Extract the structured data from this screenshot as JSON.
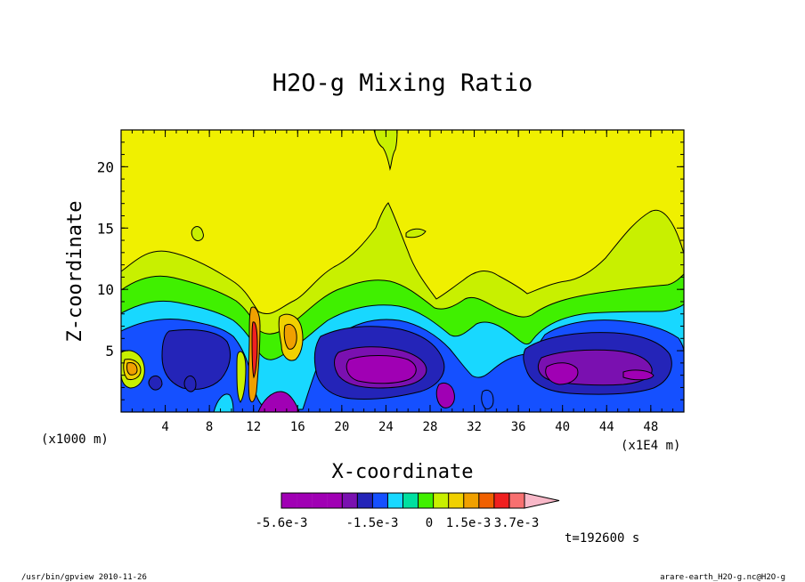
{
  "chart_data": {
    "type": "heatmap",
    "title": "H2O-g Mixing Ratio",
    "xlabel": "X-coordinate",
    "ylabel": "Z-coordinate",
    "x_unit_left": "(x1000 m)",
    "x_unit_right": "(x1E4 m)",
    "x_ticks": [
      "4",
      "8",
      "12",
      "16",
      "20",
      "24",
      "28",
      "32",
      "36",
      "40",
      "44",
      "48"
    ],
    "x_tick_values": [
      4,
      8,
      12,
      16,
      20,
      24,
      28,
      32,
      36,
      40,
      44,
      48
    ],
    "y_ticks": [
      "5",
      "10",
      "15",
      "20"
    ],
    "y_tick_values": [
      5,
      10,
      15,
      20
    ],
    "xlim": [
      0,
      51
    ],
    "ylim": [
      0,
      23
    ],
    "grid": false,
    "colorbar": {
      "tick_labels": [
        "-5.6e-3",
        "-1.5e-3",
        "0",
        "1.5e-3",
        "3.7e-3"
      ],
      "bins": [
        "#a000b4",
        "#a000b4",
        "#a000b4",
        "#a000b4",
        "#7a10b0",
        "#2424b8",
        "#1550ff",
        "#18d8ff",
        "#00e0a0",
        "#40f000",
        "#c8f000",
        "#f0d000",
        "#f0a000",
        "#f06000",
        "#f02020",
        "#f87070"
      ],
      "extend_color": "#f8b8c8"
    },
    "levels": [
      {
        "name": "L14",
        "color": "#c8f000"
      },
      {
        "name": "L13",
        "color": "#40f000"
      },
      {
        "name": "L11",
        "color": "#18d8ff"
      },
      {
        "name": "L10",
        "color": "#1550ff"
      },
      {
        "name": "L9",
        "color": "#2424b8"
      },
      {
        "name": "L8",
        "color": "#7a10b0"
      },
      {
        "name": "L7",
        "color": "#a000b4"
      }
    ],
    "background_color": "#f0f000",
    "time_label": "t=192600 s"
  },
  "footer": {
    "left": "/usr/bin/gpview  2010-11-26",
    "right": "arare-earth_H2O-g.nc@H2O-g"
  }
}
